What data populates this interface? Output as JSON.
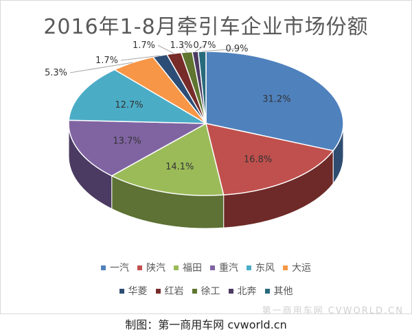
{
  "chart_data": {
    "type": "pie",
    "title": "2016年1-8月牵引车企业市场份额",
    "slices": [
      {
        "name": "一汽",
        "value": 31.2,
        "label": "31.2%",
        "color": "#4f81bd",
        "side": "#2f4d71"
      },
      {
        "name": "陕汽",
        "value": 16.8,
        "label": "16.8%",
        "color": "#c0504d",
        "side": "#6e2a28"
      },
      {
        "name": "福田",
        "value": 14.1,
        "label": "14.1%",
        "color": "#9bbb59",
        "side": "#5d7234"
      },
      {
        "name": "重汽",
        "value": 13.7,
        "label": "13.7%",
        "color": "#8064a2",
        "side": "#4b3a61"
      },
      {
        "name": "东风",
        "value": 12.7,
        "label": "12.7%",
        "color": "#4bacc6",
        "side": "#2a6677"
      },
      {
        "name": "大运",
        "value": 5.3,
        "label": "5.3%",
        "color": "#f79646",
        "side": "#9b5b26"
      },
      {
        "name": "华菱",
        "value": 1.7,
        "label": "1.7%",
        "color": "#2c4d75",
        "side": "#1a2e47"
      },
      {
        "name": "红岩",
        "value": 1.7,
        "label": "1.7%",
        "color": "#772c2a",
        "side": "#451918"
      },
      {
        "name": "徐工",
        "value": 1.3,
        "label": "1.3%",
        "color": "#5f7530",
        "side": "#38461b"
      },
      {
        "name": "北奔",
        "value": 0.7,
        "label": "0.7%",
        "color": "#4d3b62",
        "side": "#2d2239"
      },
      {
        "name": "其他",
        "value": 0.9,
        "label": "0.9%",
        "color": "#276a7c",
        "side": "#153e49"
      }
    ],
    "legend_position": "bottom"
  },
  "legend": {
    "row1": [
      "一汽",
      "陕汽",
      "福田",
      "重汽",
      "东风",
      "大运"
    ],
    "row2": [
      "华菱",
      "红岩",
      "徐工",
      "北奔",
      "其他"
    ]
  },
  "footer": {
    "credit": "制图：第一商用车网 cvworld.cn",
    "watermark": "第一商用车网 CVWORLD.CN"
  }
}
